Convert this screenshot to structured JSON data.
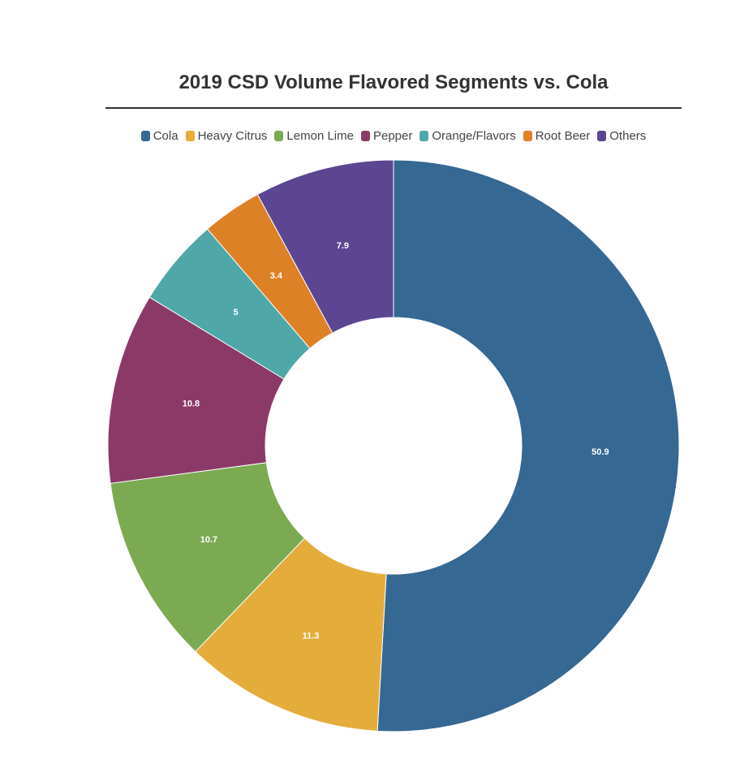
{
  "chart_data": {
    "type": "pie",
    "title": "2019 CSD Volume Flavored Segments vs. Cola",
    "donut": true,
    "legend_position": "top",
    "categories": [
      "Cola",
      "Heavy Citrus",
      "Lemon Lime",
      "Pepper",
      "Orange/Flavors",
      "Root Beer",
      "Others"
    ],
    "values": [
      50.9,
      11.3,
      10.7,
      10.8,
      5,
      3.4,
      7.9
    ],
    "value_labels": [
      "50.9",
      "11.3",
      "10.7",
      "10.8",
      "5",
      "3.4",
      "7.9"
    ],
    "colors": [
      "#356893",
      "#e4ad3b",
      "#7caa52",
      "#8b3a68",
      "#4fa7a8",
      "#dd8127",
      "#5c4591"
    ]
  }
}
